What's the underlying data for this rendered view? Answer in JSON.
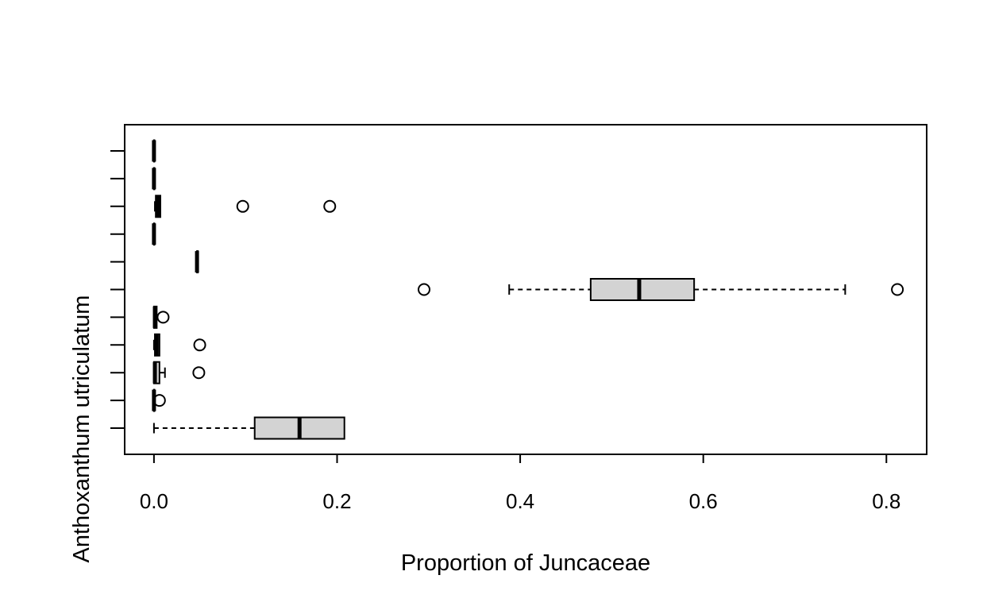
{
  "chart_data": {
    "type": "boxplot",
    "orientation": "horizontal",
    "title": "",
    "xlabel": "Proportion of Juncaceae",
    "ylabel": "Anthoxanthum utriculatum",
    "xlim": [
      -0.032,
      0.844
    ],
    "xticks": [
      0.0,
      0.2,
      0.4,
      0.6,
      0.8
    ],
    "xtick_labels": [
      "0.0",
      "0.2",
      "0.4",
      "0.6",
      "0.8"
    ],
    "n_groups": 11,
    "y_tick_labels_shown": false,
    "grid": false,
    "legend": "none",
    "box_fill": "#d3d3d3",
    "series": [
      {
        "whisker_low": 0.0,
        "q1": 0.11,
        "median": 0.159,
        "q3": 0.208,
        "whisker_high": 0.208,
        "outliers": []
      },
      {
        "whisker_low": 0.0,
        "q1": 0.0,
        "median": 0.0,
        "q3": 0.0,
        "whisker_high": 0.0,
        "outliers": [
          0.006
        ]
      },
      {
        "whisker_low": 0.0,
        "q1": 0.0,
        "median": 0.001,
        "q3": 0.006,
        "whisker_high": 0.012,
        "outliers": [
          0.049
        ]
      },
      {
        "whisker_low": 0.0,
        "q1": 0.001,
        "median": 0.003,
        "q3": 0.006,
        "whisker_high": 0.006,
        "outliers": [
          0.05
        ]
      },
      {
        "whisker_low": 0.0,
        "q1": 0.0,
        "median": 0.001,
        "q3": 0.003,
        "whisker_high": 0.003,
        "outliers": [
          0.01
        ]
      },
      {
        "whisker_low": 0.388,
        "q1": 0.477,
        "median": 0.53,
        "q3": 0.59,
        "whisker_high": 0.755,
        "outliers": [
          0.295,
          0.812
        ]
      },
      {
        "whisker_low": 0.047,
        "q1": 0.047,
        "median": 0.047,
        "q3": 0.048,
        "whisker_high": 0.048,
        "outliers": []
      },
      {
        "whisker_low": 0.0,
        "q1": 0.0,
        "median": 0.0,
        "q3": 0.0,
        "whisker_high": 0.0,
        "outliers": []
      },
      {
        "whisker_low": 0.001,
        "q1": 0.002,
        "median": 0.004,
        "q3": 0.007,
        "whisker_high": 0.007,
        "outliers": [
          0.097,
          0.192
        ]
      },
      {
        "whisker_low": 0.0,
        "q1": 0.0,
        "median": 0.0,
        "q3": 0.0,
        "whisker_high": 0.0,
        "outliers": []
      },
      {
        "whisker_low": 0.0,
        "q1": 0.0,
        "median": 0.0,
        "q3": 0.0,
        "whisker_high": 0.0,
        "outliers": []
      }
    ]
  }
}
